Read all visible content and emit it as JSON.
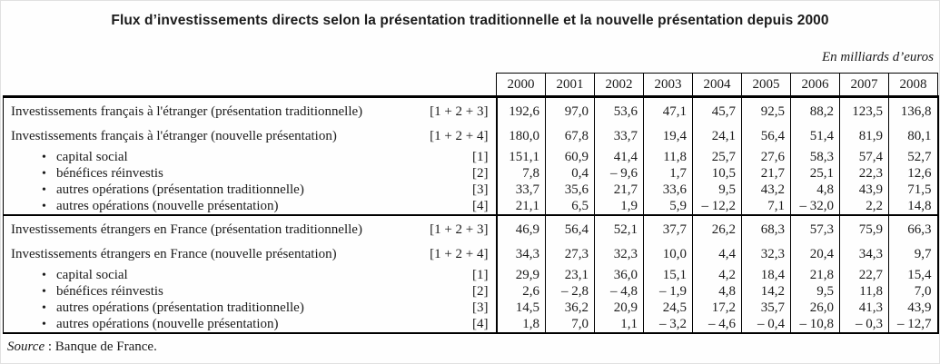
{
  "title": "Flux d’investissements directs selon la présentation traditionnelle et la nouvelle présentation depuis 2000",
  "unit_note": "En milliards d’euros",
  "source": {
    "label": "Source",
    "rest": " : Banque de France."
  },
  "table": {
    "bullet_glyph": "•",
    "years": [
      "2000",
      "2001",
      "2002",
      "2003",
      "2004",
      "2005",
      "2006",
      "2007",
      "2008"
    ],
    "blocks": [
      {
        "rows": [
          {
            "label": "Investissements français à l'étranger (présentation traditionnelle)",
            "formula": "[1 + 2 + 3]",
            "bullet": false,
            "values": [
              "192,6",
              "97,0",
              "53,6",
              "47,1",
              "45,7",
              "92,5",
              "88,2",
              "123,5",
              "136,8"
            ]
          },
          {
            "label": "Investissements français à l'étranger (nouvelle présentation)",
            "formula": "[1 + 2 + 4]",
            "bullet": false,
            "values": [
              "180,0",
              "67,8",
              "33,7",
              "19,4",
              "24,1",
              "56,4",
              "51,4",
              "81,9",
              "80,1"
            ]
          },
          {
            "label": "capital social",
            "formula": "[1]",
            "bullet": true,
            "values": [
              "151,1",
              "60,9",
              "41,4",
              "11,8",
              "25,7",
              "27,6",
              "58,3",
              "57,4",
              "52,7"
            ]
          },
          {
            "label": "bénéfices réinvestis",
            "formula": "[2]",
            "bullet": true,
            "values": [
              "7,8",
              "0,4",
              "– 9,6",
              "1,7",
              "10,5",
              "21,7",
              "25,1",
              "22,3",
              "12,6"
            ]
          },
          {
            "label": "autres opérations (présentation traditionnelle)",
            "formula": "[3]",
            "bullet": true,
            "values": [
              "33,7",
              "35,6",
              "21,7",
              "33,6",
              "9,5",
              "43,2",
              "4,8",
              "43,9",
              "71,5"
            ]
          },
          {
            "label": "autres opérations (nouvelle présentation)",
            "formula": "[4]",
            "bullet": true,
            "values": [
              "21,1",
              "6,5",
              "1,9",
              "5,9",
              "– 12,2",
              "7,1",
              "– 32,0",
              "2,2",
              "14,8"
            ]
          }
        ]
      },
      {
        "rows": [
          {
            "label": "Investissements étrangers en France (présentation traditionnelle)",
            "formula": "[1 + 2 + 3]",
            "bullet": false,
            "values": [
              "46,9",
              "56,4",
              "52,1",
              "37,7",
              "26,2",
              "68,3",
              "57,3",
              "75,9",
              "66,3"
            ]
          },
          {
            "label": "Investissements étrangers en France (nouvelle présentation)",
            "formula": "[1 + 2 + 4]",
            "bullet": false,
            "values": [
              "34,3",
              "27,3",
              "32,3",
              "10,0",
              "4,4",
              "32,3",
              "20,4",
              "34,3",
              "9,7"
            ]
          },
          {
            "label": "capital social",
            "formula": "[1]",
            "bullet": true,
            "values": [
              "29,9",
              "23,1",
              "36,0",
              "15,1",
              "4,2",
              "18,4",
              "21,8",
              "22,7",
              "15,4"
            ]
          },
          {
            "label": "bénéfices réinvestis",
            "formula": "[2]",
            "bullet": true,
            "values": [
              "2,6",
              "– 2,8",
              "– 4,8",
              "– 1,9",
              "4,8",
              "14,2",
              "9,5",
              "11,8",
              "7,0"
            ]
          },
          {
            "label": "autres opérations (présentation traditionnelle)",
            "formula": "[3]",
            "bullet": true,
            "values": [
              "14,5",
              "36,2",
              "20,9",
              "24,5",
              "17,2",
              "35,7",
              "26,0",
              "41,3",
              "43,9"
            ]
          },
          {
            "label": "autres opérations (nouvelle présentation)",
            "formula": "[4]",
            "bullet": true,
            "values": [
              "1,8",
              "7,0",
              "1,1",
              "– 3,2",
              "– 4,6",
              "– 0,4",
              "– 10,8",
              "– 0,3",
              "– 12,7"
            ]
          }
        ]
      }
    ]
  }
}
